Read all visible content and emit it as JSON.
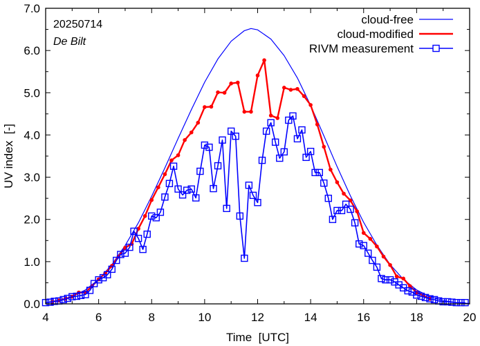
{
  "chart_data": {
    "type": "line",
    "title": "",
    "xlabel": "Time  [UTC]",
    "ylabel": "UV index  [-]",
    "xlim": [
      4,
      20
    ],
    "ylim": [
      0,
      7
    ],
    "xticks": [
      4,
      6,
      8,
      10,
      12,
      14,
      16,
      18,
      20
    ],
    "xtick_labels": [
      "4",
      "6",
      "8",
      "10",
      "12",
      "14",
      "16",
      "18",
      "20"
    ],
    "yticks": [
      0,
      1,
      2,
      3,
      4,
      5,
      6,
      7
    ],
    "ytick_labels": [
      "0.0",
      "1.0",
      "2.0",
      "3.0",
      "4.0",
      "5.0",
      "6.0",
      "7.0"
    ],
    "grid": false,
    "legend_position": "top-right",
    "annotations": [
      {
        "text": "20250714",
        "style": "normal"
      },
      {
        "text": "De Bilt",
        "style": "italic"
      }
    ],
    "series": [
      {
        "name": "cloud-free",
        "color": "#0000ff",
        "style": "line",
        "x": [
          4.0,
          4.5,
          5.0,
          5.5,
          6.0,
          6.5,
          7.0,
          7.5,
          8.0,
          8.5,
          9.0,
          9.5,
          10.0,
          10.5,
          11.0,
          11.5,
          11.75,
          12.0,
          12.5,
          13.0,
          13.5,
          14.0,
          14.5,
          15.0,
          15.5,
          16.0,
          16.5,
          17.0,
          17.5,
          18.0,
          18.5,
          19.0,
          19.5,
          20.0
        ],
        "y": [
          0.03,
          0.08,
          0.17,
          0.33,
          0.58,
          0.93,
          1.38,
          1.92,
          2.55,
          3.22,
          3.92,
          4.6,
          5.25,
          5.8,
          6.22,
          6.47,
          6.52,
          6.49,
          6.27,
          5.88,
          5.35,
          4.7,
          3.98,
          3.25,
          2.56,
          1.93,
          1.39,
          0.93,
          0.58,
          0.33,
          0.17,
          0.08,
          0.03,
          0.01
        ]
      },
      {
        "name": "cloud-modified",
        "color": "#ff0000",
        "style": "line+dot",
        "x": [
          4.25,
          4.5,
          4.75,
          5.0,
          5.25,
          5.5,
          5.75,
          6.0,
          6.25,
          6.5,
          6.75,
          7.0,
          7.25,
          7.5,
          7.75,
          8.0,
          8.25,
          8.5,
          8.75,
          9.0,
          9.25,
          9.5,
          9.75,
          10.0,
          10.25,
          10.5,
          10.75,
          11.0,
          11.25,
          11.5,
          11.75,
          12.0,
          12.25,
          12.5,
          12.75,
          13.0,
          13.25,
          13.5,
          13.75,
          14.0,
          14.25,
          14.5,
          14.75,
          15.0,
          15.25,
          15.5,
          15.75,
          16.0,
          16.25,
          16.5,
          16.75,
          17.0,
          17.25,
          17.5,
          17.75,
          18.0,
          18.25,
          18.5
        ],
        "y": [
          0.05,
          0.08,
          0.12,
          0.17,
          0.27,
          0.27,
          0.42,
          0.58,
          0.73,
          0.9,
          1.12,
          1.33,
          1.42,
          1.78,
          2.08,
          2.46,
          2.76,
          3.07,
          3.4,
          3.52,
          3.88,
          4.06,
          4.29,
          4.66,
          4.67,
          5.01,
          5.0,
          5.22,
          5.24,
          4.55,
          4.55,
          5.41,
          5.77,
          4.46,
          4.4,
          5.12,
          5.07,
          5.09,
          4.92,
          4.71,
          4.25,
          3.72,
          3.18,
          2.88,
          2.61,
          2.45,
          2.19,
          1.68,
          1.54,
          1.36,
          1.12,
          0.92,
          0.65,
          0.6,
          0.42,
          0.27,
          0.2,
          0.12
        ]
      },
      {
        "name": "RIVM measurement",
        "color": "#0000ff",
        "style": "line+square",
        "x": [
          4.0,
          4.17,
          4.33,
          4.5,
          4.67,
          4.83,
          5.0,
          5.17,
          5.33,
          5.5,
          5.67,
          5.83,
          6.0,
          6.17,
          6.33,
          6.5,
          6.67,
          6.83,
          7.0,
          7.17,
          7.33,
          7.5,
          7.67,
          7.83,
          8.0,
          8.17,
          8.33,
          8.5,
          8.67,
          8.83,
          9.0,
          9.17,
          9.33,
          9.5,
          9.67,
          9.83,
          10.0,
          10.17,
          10.33,
          10.5,
          10.67,
          10.83,
          11.0,
          11.17,
          11.33,
          11.5,
          11.67,
          11.83,
          12.0,
          12.17,
          12.33,
          12.5,
          12.67,
          12.83,
          13.0,
          13.17,
          13.33,
          13.5,
          13.67,
          13.83,
          14.0,
          14.17,
          14.33,
          14.5,
          14.67,
          14.83,
          15.0,
          15.17,
          15.33,
          15.5,
          15.67,
          15.83,
          16.0,
          16.17,
          16.33,
          16.5,
          16.67,
          16.83,
          17.0,
          17.17,
          17.33,
          17.5,
          17.67,
          17.83,
          18.0,
          18.17,
          18.33,
          18.5,
          18.67,
          18.83,
          19.0,
          19.17,
          19.33,
          19.5,
          19.67,
          19.83
        ],
        "y": [
          0.03,
          0.04,
          0.06,
          0.07,
          0.1,
          0.13,
          0.17,
          0.18,
          0.2,
          0.22,
          0.32,
          0.48,
          0.57,
          0.62,
          0.69,
          0.82,
          1.03,
          1.17,
          1.2,
          1.34,
          1.72,
          1.55,
          1.29,
          1.65,
          2.08,
          2.04,
          2.17,
          2.53,
          2.85,
          3.26,
          2.72,
          2.58,
          2.69,
          2.72,
          2.51,
          3.14,
          3.76,
          3.71,
          2.73,
          3.27,
          3.88,
          2.26,
          4.09,
          3.97,
          2.08,
          1.08,
          2.81,
          2.57,
          2.4,
          3.4,
          4.09,
          4.29,
          3.83,
          3.45,
          3.6,
          4.35,
          4.45,
          3.91,
          4.12,
          3.47,
          3.61,
          3.11,
          3.11,
          2.86,
          2.5,
          2.0,
          2.21,
          2.21,
          2.36,
          2.24,
          1.92,
          1.42,
          1.38,
          1.2,
          1.03,
          0.87,
          0.6,
          0.57,
          0.57,
          0.52,
          0.45,
          0.38,
          0.31,
          0.28,
          0.21,
          0.18,
          0.15,
          0.12,
          0.1,
          0.07,
          0.05,
          0.05,
          0.04,
          0.03,
          0.03,
          0.03
        ]
      }
    ]
  }
}
